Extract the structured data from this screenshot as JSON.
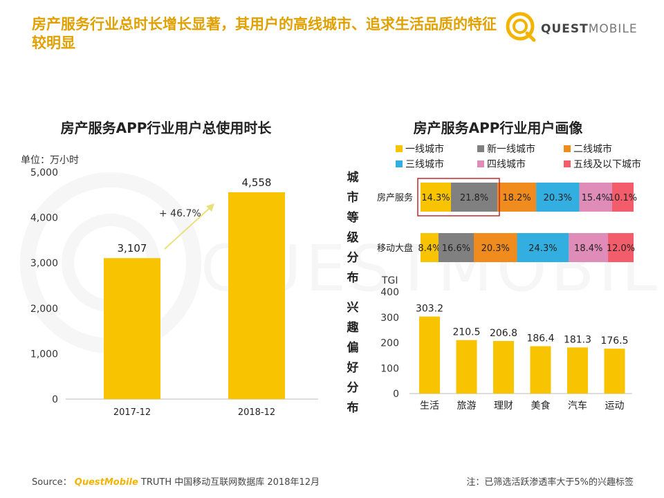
{
  "headline": "房产服务行业总时长增长显著，其用户的高线城市、追求生活品质的特征较明显",
  "logo": {
    "word_quest": "QUEST",
    "word_mobile": "MOBILE"
  },
  "watermark": "QUESTMOBILE",
  "colors": {
    "accent_yellow": "#F8C300",
    "headline": "#E0A100",
    "tier1": "#F8C300",
    "new_tier1": "#808080",
    "tier2": "#F08C1E",
    "tier3": "#33AEE0",
    "tier4": "#E08CB8",
    "tier5": "#F25C6B",
    "highlight": "#C0282D"
  },
  "left_units_label": "单位：万小时",
  "growth_label": "+ 46.7%",
  "middle_labels": {
    "city": "城市等级分布",
    "interest": "兴趣偏好分布"
  },
  "chart_data": [
    {
      "type": "bar",
      "title": "房产服务APP行业用户总使用时长",
      "ylabel": "单位：万小时",
      "categories": [
        "2017-12",
        "2018-12"
      ],
      "values": [
        3107,
        4558
      ],
      "value_labels": [
        "3,107",
        "4,558"
      ],
      "yticks": [
        "0",
        "1,000",
        "2,000",
        "3,000",
        "4,000",
        "5,000"
      ],
      "ylim": [
        0,
        5000
      ],
      "growth": "+ 46.7%",
      "color": "#F8C300"
    },
    {
      "type": "bar",
      "subtype": "stacked-horizontal-100",
      "title": "房产服务APP行业用户画像",
      "legend": [
        "一线城市",
        "新一线城市",
        "二线城市",
        "三线城市",
        "四线城市",
        "五线及以下城市"
      ],
      "legend_position": "top",
      "categories": [
        "房产服务",
        "移动大盘"
      ],
      "series": [
        {
          "name": "一线城市",
          "values": [
            14.3,
            8.4
          ],
          "labels": [
            "14.3%",
            "8.4%"
          ]
        },
        {
          "name": "新一线城市",
          "values": [
            21.8,
            16.6
          ],
          "labels": [
            "21.8%",
            "16.6%"
          ]
        },
        {
          "name": "二线城市",
          "values": [
            18.2,
            20.3
          ],
          "labels": [
            "18.2%",
            "20.3%"
          ]
        },
        {
          "name": "三线城市",
          "values": [
            20.3,
            24.3
          ],
          "labels": [
            "20.3%",
            "24.3%"
          ]
        },
        {
          "name": "四线城市",
          "values": [
            15.4,
            18.4
          ],
          "labels": [
            "15.4%",
            "18.4%"
          ]
        },
        {
          "name": "五线及以下城市",
          "values": [
            10.1,
            12.0
          ],
          "labels": [
            "10.1%",
            "12.0%"
          ]
        }
      ]
    },
    {
      "type": "bar",
      "ylabel": "TGI",
      "categories": [
        "生活",
        "旅游",
        "理财",
        "美食",
        "汽车",
        "运动"
      ],
      "values": [
        303.2,
        210.5,
        206.8,
        186.4,
        181.3,
        176.5
      ],
      "value_labels": [
        "303.2",
        "210.5",
        "206.8",
        "186.4",
        "181.3",
        "176.5"
      ],
      "yticks": [
        "0",
        "100",
        "200",
        "300",
        "400"
      ],
      "ylim": [
        0,
        400
      ],
      "color": "#F8C300"
    }
  ],
  "footer": {
    "source_prefix": "Source：",
    "source_brand": "QuestMobile",
    "source_rest": " TRUTH 中国移动互联网数据库 2018年12月",
    "note": "注：已筛选活跃渗透率大于5%的兴趣标签"
  }
}
